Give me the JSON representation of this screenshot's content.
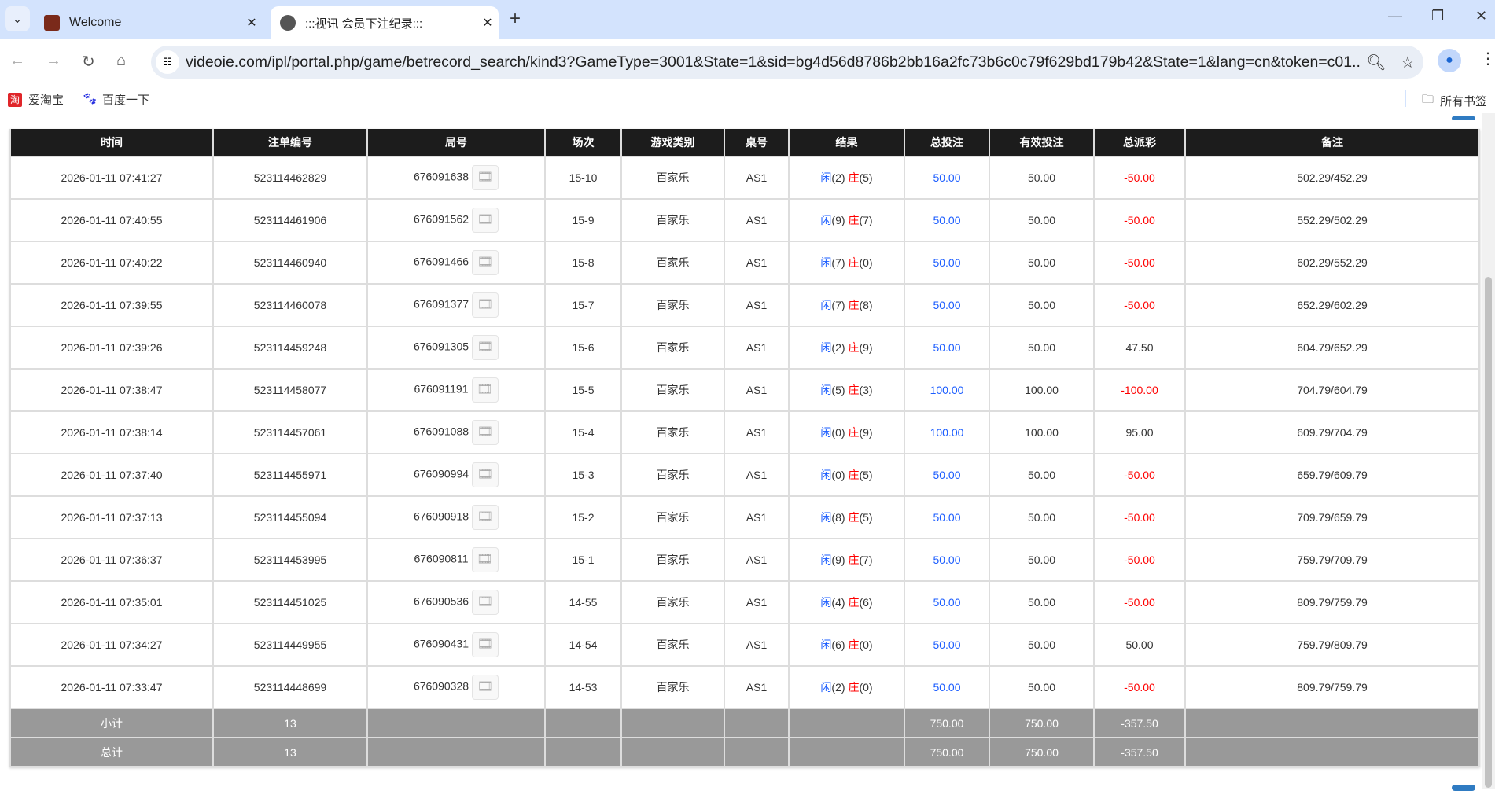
{
  "browser": {
    "tabs": [
      {
        "title": "Welcome"
      },
      {
        "title": ":::视讯 会员下注纪录:::"
      }
    ],
    "url": "videoie.com/ipl/portal.php/game/betrecord_search/kind3?GameType=3001&State=1&sid=bg4d56d8786b2bb16a2fc73b6c0c79f629bd179b42&State=1&lang=cn&token=c01...",
    "bookmarks": [
      {
        "label": "爱淘宝"
      },
      {
        "label": "百度一下"
      }
    ],
    "all_bookmarks": "所有书签"
  },
  "table": {
    "headers": [
      "时间",
      "注单编号",
      "局号",
      "场次",
      "游戏类别",
      "桌号",
      "结果",
      "总投注",
      "有效投注",
      "总派彩",
      "备注"
    ],
    "player_label": "闲",
    "banker_label": "庄",
    "rows": [
      {
        "time": "2026-01-11 07:41:27",
        "bet_id": "523114462829",
        "round": "676091638",
        "shoe": "15-10",
        "game": "百家乐",
        "table": "AS1",
        "player": "(2)",
        "banker": "(5)",
        "bet": "50.00",
        "valid": "50.00",
        "payout": "-50.00",
        "note": "502.29/452.29"
      },
      {
        "time": "2026-01-11 07:40:55",
        "bet_id": "523114461906",
        "round": "676091562",
        "shoe": "15-9",
        "game": "百家乐",
        "table": "AS1",
        "player": "(9)",
        "banker": "(7)",
        "bet": "50.00",
        "valid": "50.00",
        "payout": "-50.00",
        "note": "552.29/502.29"
      },
      {
        "time": "2026-01-11 07:40:22",
        "bet_id": "523114460940",
        "round": "676091466",
        "shoe": "15-8",
        "game": "百家乐",
        "table": "AS1",
        "player": "(7)",
        "banker": "(0)",
        "bet": "50.00",
        "valid": "50.00",
        "payout": "-50.00",
        "note": "602.29/552.29"
      },
      {
        "time": "2026-01-11 07:39:55",
        "bet_id": "523114460078",
        "round": "676091377",
        "shoe": "15-7",
        "game": "百家乐",
        "table": "AS1",
        "player": "(7)",
        "banker": "(8)",
        "bet": "50.00",
        "valid": "50.00",
        "payout": "-50.00",
        "note": "652.29/602.29"
      },
      {
        "time": "2026-01-11 07:39:26",
        "bet_id": "523114459248",
        "round": "676091305",
        "shoe": "15-6",
        "game": "百家乐",
        "table": "AS1",
        "player": "(2)",
        "banker": "(9)",
        "bet": "50.00",
        "valid": "50.00",
        "payout": "47.50",
        "note": "604.79/652.29"
      },
      {
        "time": "2026-01-11 07:38:47",
        "bet_id": "523114458077",
        "round": "676091191",
        "shoe": "15-5",
        "game": "百家乐",
        "table": "AS1",
        "player": "(5)",
        "banker": "(3)",
        "bet": "100.00",
        "valid": "100.00",
        "payout": "-100.00",
        "note": "704.79/604.79"
      },
      {
        "time": "2026-01-11 07:38:14",
        "bet_id": "523114457061",
        "round": "676091088",
        "shoe": "15-4",
        "game": "百家乐",
        "table": "AS1",
        "player": "(0)",
        "banker": "(9)",
        "bet": "100.00",
        "valid": "100.00",
        "payout": "95.00",
        "note": "609.79/704.79"
      },
      {
        "time": "2026-01-11 07:37:40",
        "bet_id": "523114455971",
        "round": "676090994",
        "shoe": "15-3",
        "game": "百家乐",
        "table": "AS1",
        "player": "(0)",
        "banker": "(5)",
        "bet": "50.00",
        "valid": "50.00",
        "payout": "-50.00",
        "note": "659.79/609.79"
      },
      {
        "time": "2026-01-11 07:37:13",
        "bet_id": "523114455094",
        "round": "676090918",
        "shoe": "15-2",
        "game": "百家乐",
        "table": "AS1",
        "player": "(8)",
        "banker": "(5)",
        "bet": "50.00",
        "valid": "50.00",
        "payout": "-50.00",
        "note": "709.79/659.79"
      },
      {
        "time": "2026-01-11 07:36:37",
        "bet_id": "523114453995",
        "round": "676090811",
        "shoe": "15-1",
        "game": "百家乐",
        "table": "AS1",
        "player": "(9)",
        "banker": "(7)",
        "bet": "50.00",
        "valid": "50.00",
        "payout": "-50.00",
        "note": "759.79/709.79"
      },
      {
        "time": "2026-01-11 07:35:01",
        "bet_id": "523114451025",
        "round": "676090536",
        "shoe": "14-55",
        "game": "百家乐",
        "table": "AS1",
        "player": "(4)",
        "banker": "(6)",
        "bet": "50.00",
        "valid": "50.00",
        "payout": "-50.00",
        "note": "809.79/759.79"
      },
      {
        "time": "2026-01-11 07:34:27",
        "bet_id": "523114449955",
        "round": "676090431",
        "shoe": "14-54",
        "game": "百家乐",
        "table": "AS1",
        "player": "(6)",
        "banker": "(0)",
        "bet": "50.00",
        "valid": "50.00",
        "payout": "50.00",
        "note": "759.79/809.79"
      },
      {
        "time": "2026-01-11 07:33:47",
        "bet_id": "523114448699",
        "round": "676090328",
        "shoe": "14-53",
        "game": "百家乐",
        "table": "AS1",
        "player": "(2)",
        "banker": "(0)",
        "bet": "50.00",
        "valid": "50.00",
        "payout": "-50.00",
        "note": "809.79/759.79"
      }
    ],
    "subtotal": {
      "label": "小计",
      "count": "13",
      "bet": "750.00",
      "valid": "750.00",
      "payout": "-357.50"
    },
    "total": {
      "label": "总计",
      "count": "13",
      "bet": "750.00",
      "valid": "750.00",
      "payout": "-357.50"
    }
  },
  "colors": {
    "player": "#1a5cff",
    "loss": "#ff0000",
    "header_bg": "#1c1c1c",
    "summary_bg": "#999999"
  }
}
